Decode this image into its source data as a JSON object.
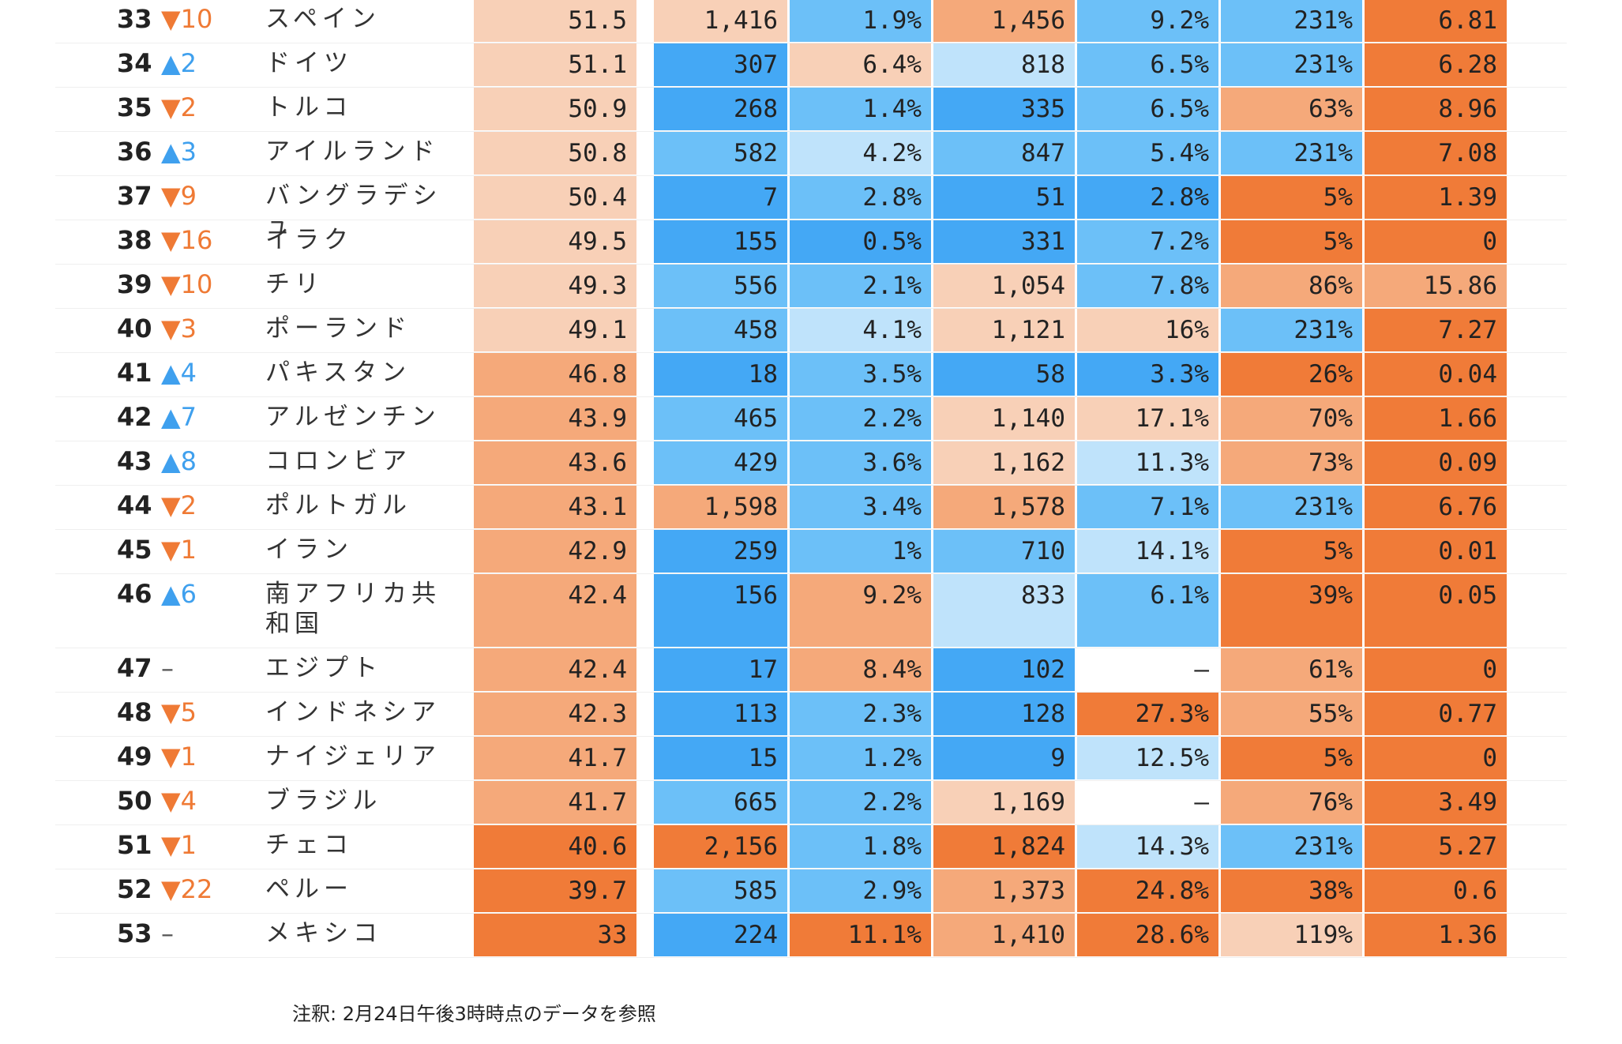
{
  "note": "注釈: 2月24日午後3時時点のデータを参照",
  "colors": {
    "orange_dark": "#f07b38",
    "orange_mid": "#f5a97a",
    "orange_light": "#f8d0b7",
    "blue_dark": "#44a8f5",
    "blue_mid": "#6cc0f8",
    "blue_light": "#bfe3fb",
    "empty": "#ffffff"
  },
  "chart_data": {
    "type": "table",
    "columns": [
      "rank",
      "change",
      "country",
      "col1",
      "col2",
      "col3",
      "col4",
      "col5",
      "col6",
      "col7"
    ],
    "rows": [
      {
        "rank": "33",
        "change": "▼10",
        "dir": "down",
        "country": "スペイン",
        "cells": [
          "51.5",
          "1,416",
          "1.9%",
          "1,456",
          "9.2%",
          "231%",
          "6.81"
        ],
        "shade": [
          "ol",
          "ol",
          "bm",
          "om",
          "bm",
          "bm",
          "od"
        ]
      },
      {
        "rank": "34",
        "change": "▲2",
        "dir": "up",
        "country": "ドイツ",
        "cells": [
          "51.1",
          "307",
          "6.4%",
          "818",
          "6.5%",
          "231%",
          "6.28"
        ],
        "shade": [
          "ol",
          "bd",
          "ol",
          "bl",
          "bm",
          "bm",
          "od"
        ]
      },
      {
        "rank": "35",
        "change": "▼2",
        "dir": "down",
        "country": "トルコ",
        "cells": [
          "50.9",
          "268",
          "1.4%",
          "335",
          "6.5%",
          "63%",
          "8.96"
        ],
        "shade": [
          "ol",
          "bd",
          "bm",
          "bd",
          "bm",
          "om",
          "od"
        ]
      },
      {
        "rank": "36",
        "change": "▲3",
        "dir": "up",
        "country": "アイルランド",
        "cells": [
          "50.8",
          "582",
          "4.2%",
          "847",
          "5.4%",
          "231%",
          "7.08"
        ],
        "shade": [
          "ol",
          "bm",
          "bl",
          "bm",
          "bm",
          "bm",
          "od"
        ]
      },
      {
        "rank": "37",
        "change": "▼9",
        "dir": "down",
        "country": "バングラデシュ",
        "cells": [
          "50.4",
          "7",
          "2.8%",
          "51",
          "2.8%",
          "5%",
          "1.39"
        ],
        "shade": [
          "ol",
          "bd",
          "bm",
          "bd",
          "bd",
          "od",
          "od"
        ]
      },
      {
        "rank": "38",
        "change": "▼16",
        "dir": "down",
        "country": "イラク",
        "cells": [
          "49.5",
          "155",
          "0.5%",
          "331",
          "7.2%",
          "5%",
          "0"
        ],
        "shade": [
          "ol",
          "bd",
          "bd",
          "bd",
          "bm",
          "od",
          "od"
        ]
      },
      {
        "rank": "39",
        "change": "▼10",
        "dir": "down",
        "country": "チリ",
        "cells": [
          "49.3",
          "556",
          "2.1%",
          "1,054",
          "7.8%",
          "86%",
          "15.86"
        ],
        "shade": [
          "ol",
          "bm",
          "bm",
          "ol",
          "bm",
          "om",
          "om"
        ]
      },
      {
        "rank": "40",
        "change": "▼3",
        "dir": "down",
        "country": "ポーランド",
        "cells": [
          "49.1",
          "458",
          "4.1%",
          "1,121",
          "16%",
          "231%",
          "7.27"
        ],
        "shade": [
          "ol",
          "bm",
          "bl",
          "ol",
          "ol",
          "bm",
          "od"
        ]
      },
      {
        "rank": "41",
        "change": "▲4",
        "dir": "up",
        "country": "パキスタン",
        "cells": [
          "46.8",
          "18",
          "3.5%",
          "58",
          "3.3%",
          "26%",
          "0.04"
        ],
        "shade": [
          "om",
          "bd",
          "bm",
          "bd",
          "bd",
          "od",
          "od"
        ]
      },
      {
        "rank": "42",
        "change": "▲7",
        "dir": "up",
        "country": "アルゼンチン",
        "cells": [
          "43.9",
          "465",
          "2.2%",
          "1,140",
          "17.1%",
          "70%",
          "1.66"
        ],
        "shade": [
          "om",
          "bm",
          "bm",
          "ol",
          "ol",
          "om",
          "od"
        ]
      },
      {
        "rank": "43",
        "change": "▲8",
        "dir": "up",
        "country": "コロンビア",
        "cells": [
          "43.6",
          "429",
          "3.6%",
          "1,162",
          "11.3%",
          "73%",
          "0.09"
        ],
        "shade": [
          "om",
          "bm",
          "bm",
          "ol",
          "bl",
          "om",
          "od"
        ]
      },
      {
        "rank": "44",
        "change": "▼2",
        "dir": "down",
        "country": "ポルトガル",
        "cells": [
          "43.1",
          "1,598",
          "3.4%",
          "1,578",
          "7.1%",
          "231%",
          "6.76"
        ],
        "shade": [
          "om",
          "om",
          "bm",
          "om",
          "bm",
          "bm",
          "od"
        ]
      },
      {
        "rank": "45",
        "change": "▼1",
        "dir": "down",
        "country": "イラン",
        "cells": [
          "42.9",
          "259",
          "1%",
          "710",
          "14.1%",
          "5%",
          "0.01"
        ],
        "shade": [
          "om",
          "bd",
          "bm",
          "bm",
          "bl",
          "od",
          "od"
        ]
      },
      {
        "rank": "46",
        "change": "▲6",
        "dir": "up",
        "country": "南アフリカ共和国",
        "cells": [
          "42.4",
          "156",
          "9.2%",
          "833",
          "6.1%",
          "39%",
          "0.05"
        ],
        "shade": [
          "om",
          "bd",
          "om",
          "bl",
          "bm",
          "od",
          "od"
        ]
      },
      {
        "rank": "47",
        "change": "–",
        "dir": "same",
        "country": "エジプト",
        "cells": [
          "42.4",
          "17",
          "8.4%",
          "102",
          "–",
          "61%",
          "0"
        ],
        "shade": [
          "om",
          "bd",
          "om",
          "bd",
          "na",
          "om",
          "od"
        ]
      },
      {
        "rank": "48",
        "change": "▼5",
        "dir": "down",
        "country": "インドネシア",
        "cells": [
          "42.3",
          "113",
          "2.3%",
          "128",
          "27.3%",
          "55%",
          "0.77"
        ],
        "shade": [
          "om",
          "bd",
          "bm",
          "bd",
          "od",
          "om",
          "od"
        ]
      },
      {
        "rank": "49",
        "change": "▼1",
        "dir": "down",
        "country": "ナイジェリア",
        "cells": [
          "41.7",
          "15",
          "1.2%",
          "9",
          "12.5%",
          "5%",
          "0"
        ],
        "shade": [
          "om",
          "bd",
          "bm",
          "bd",
          "bl",
          "od",
          "od"
        ]
      },
      {
        "rank": "50",
        "change": "▼4",
        "dir": "down",
        "country": "ブラジル",
        "cells": [
          "41.7",
          "665",
          "2.2%",
          "1,169",
          "–",
          "76%",
          "3.49"
        ],
        "shade": [
          "om",
          "bm",
          "bm",
          "ol",
          "na",
          "om",
          "od"
        ]
      },
      {
        "rank": "51",
        "change": "▼1",
        "dir": "down",
        "country": "チェコ",
        "cells": [
          "40.6",
          "2,156",
          "1.8%",
          "1,824",
          "14.3%",
          "231%",
          "5.27"
        ],
        "shade": [
          "od",
          "od",
          "bm",
          "od",
          "bl",
          "bm",
          "od"
        ]
      },
      {
        "rank": "52",
        "change": "▼22",
        "dir": "down",
        "country": "ペルー",
        "cells": [
          "39.7",
          "585",
          "2.9%",
          "1,373",
          "24.8%",
          "38%",
          "0.6"
        ],
        "shade": [
          "od",
          "bm",
          "bm",
          "om",
          "od",
          "od",
          "od"
        ]
      },
      {
        "rank": "53",
        "change": "–",
        "dir": "same",
        "country": "メキシコ",
        "cells": [
          "33",
          "224",
          "11.1%",
          "1,410",
          "28.6%",
          "119%",
          "1.36"
        ],
        "shade": [
          "od",
          "bd",
          "od",
          "om",
          "od",
          "ol",
          "od"
        ]
      }
    ]
  }
}
